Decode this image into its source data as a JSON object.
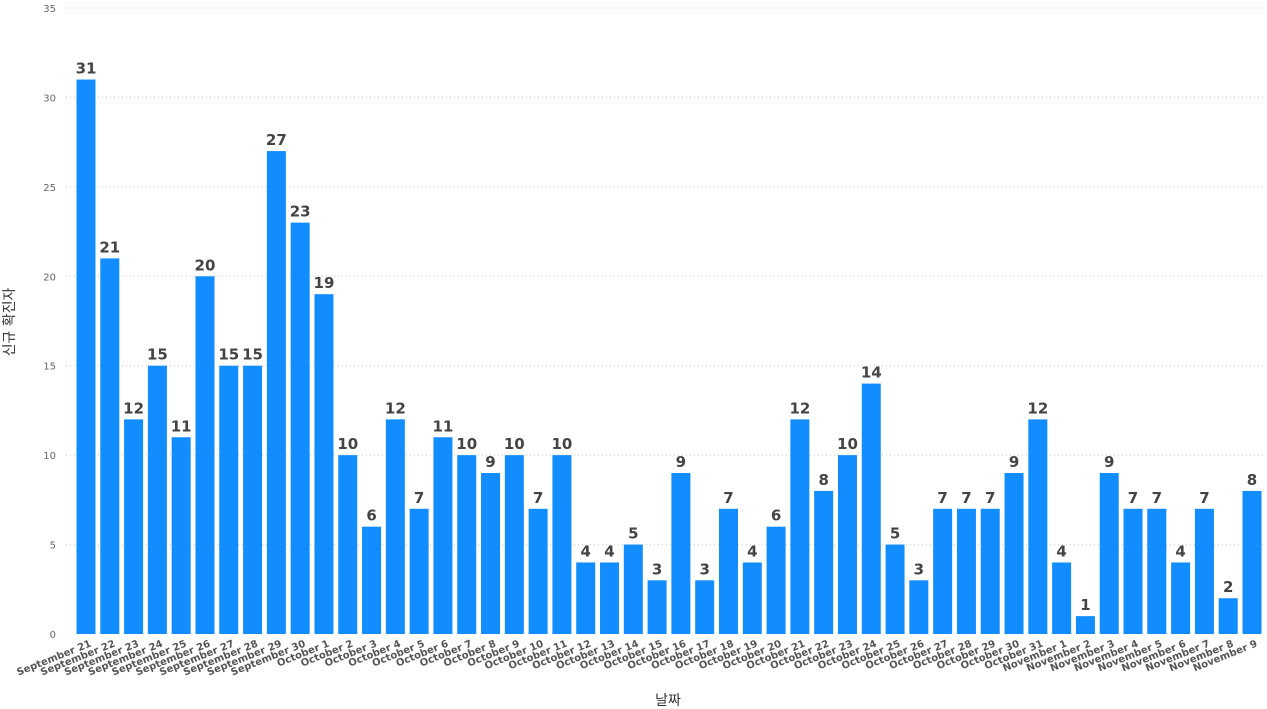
{
  "chart_data": {
    "type": "bar",
    "title": "",
    "xlabel": "날짜",
    "ylabel": "신규 확진자",
    "ylim": [
      0,
      35
    ],
    "yticks": [
      0,
      5,
      10,
      15,
      20,
      25,
      30,
      35
    ],
    "grid": true,
    "data_labels": true,
    "bar_color": "#118DFF",
    "categories": [
      "September 21",
      "September 22",
      "September 23",
      "September 24",
      "September 25",
      "September 26",
      "September 27",
      "September 28",
      "September 29",
      "September 30",
      "October 1",
      "October 2",
      "October 3",
      "October 4",
      "October 5",
      "October 6",
      "October 7",
      "October 8",
      "October 9",
      "October 10",
      "October 11",
      "October 12",
      "October 13",
      "October 14",
      "October 15",
      "October 16",
      "October 17",
      "October 18",
      "October 19",
      "October 20",
      "October 21",
      "October 22",
      "October 23",
      "October 24",
      "October 25",
      "October 26",
      "October 27",
      "October 28",
      "October 29",
      "October 30",
      "October 31",
      "November 1",
      "November 2",
      "November 3",
      "November 4",
      "November 5",
      "November 6",
      "November 7",
      "November 8",
      "November 9"
    ],
    "values": [
      31,
      21,
      12,
      15,
      11,
      20,
      15,
      15,
      27,
      23,
      19,
      10,
      6,
      12,
      7,
      11,
      10,
      9,
      10,
      7,
      10,
      4,
      4,
      5,
      3,
      9,
      3,
      7,
      4,
      6,
      12,
      8,
      10,
      14,
      5,
      3,
      7,
      7,
      7,
      9,
      12,
      4,
      1,
      9,
      7,
      7,
      4,
      7,
      2,
      8
    ]
  }
}
